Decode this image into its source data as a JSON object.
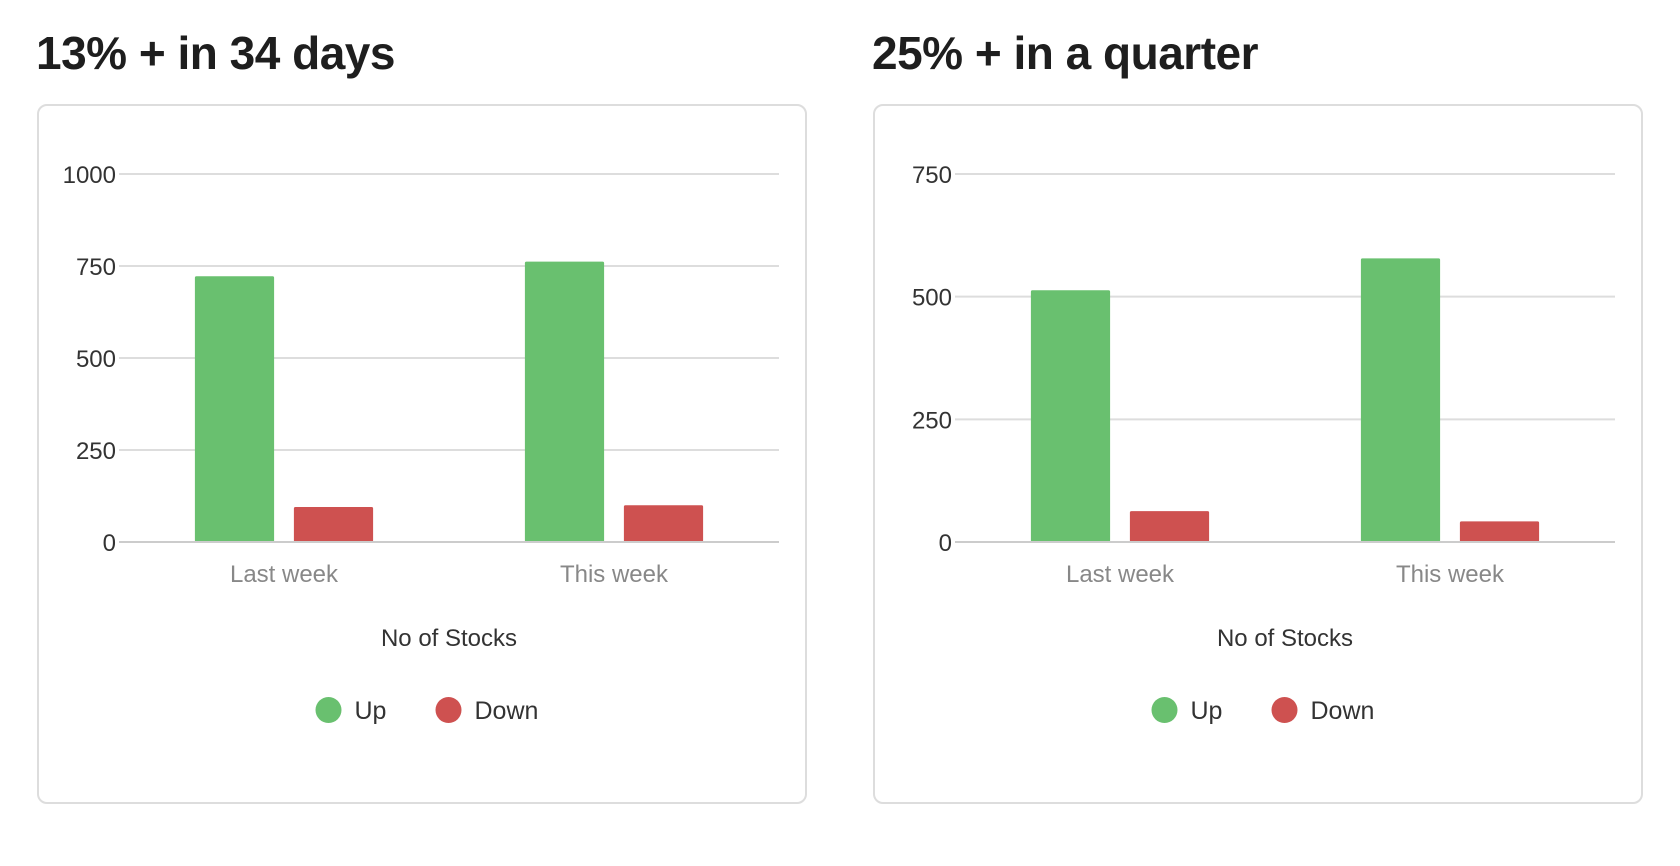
{
  "colors": {
    "up": "#69c06f",
    "down": "#ce5150",
    "grid": "#dddddd",
    "axis_text": "#333333",
    "category_text": "#888888"
  },
  "chart_data": [
    {
      "type": "bar",
      "title": "13% + in 34 days",
      "categories": [
        "Last week",
        "This week"
      ],
      "series": [
        {
          "name": "Up",
          "color": "#69c06f",
          "values": [
            722,
            762
          ]
        },
        {
          "name": "Down",
          "color": "#ce5150",
          "values": [
            95,
            100
          ]
        }
      ],
      "xlabel": "No of Stocks",
      "ylabel": "",
      "ylim": [
        0,
        1000
      ],
      "yticks": [
        "1000",
        "750",
        "500",
        "250",
        "0"
      ],
      "grid": true,
      "legend_position": "bottom"
    },
    {
      "type": "bar",
      "title": "25% + in a quarter",
      "categories": [
        "Last week",
        "This week"
      ],
      "series": [
        {
          "name": "Up",
          "color": "#69c06f",
          "values": [
            513,
            578
          ]
        },
        {
          "name": "Down",
          "color": "#ce5150",
          "values": [
            63,
            42
          ]
        }
      ],
      "xlabel": "No of Stocks",
      "ylabel": "",
      "ylim": [
        0,
        750
      ],
      "yticks": [
        "750",
        "500",
        "250",
        "0"
      ],
      "grid": true,
      "legend_position": "bottom"
    }
  ]
}
